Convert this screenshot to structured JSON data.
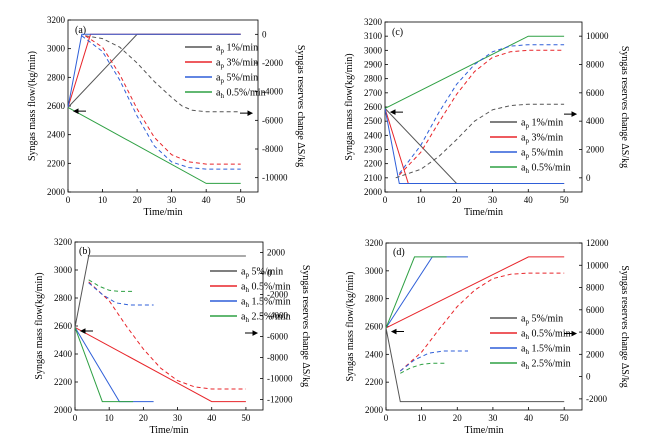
{
  "chart_data": [
    {
      "type": "line",
      "panel_label": "(a)",
      "xlabel": "Time/min",
      "ylabel": "Syngas mass flow/(kg/min)",
      "y2label": "Syngas reserves change ΔS/kg",
      "xlim": [
        0,
        55
      ],
      "xticks": [
        0,
        10,
        20,
        30,
        40,
        50
      ],
      "ylim": [
        2000,
        3200
      ],
      "yticks": [
        2000,
        2200,
        2400,
        2600,
        2800,
        3000,
        3200
      ],
      "y2lim": [
        -11000,
        1000
      ],
      "y2ticks": [
        -10000,
        -8000,
        -6000,
        -4000,
        -2000,
        0
      ],
      "legend": [
        {
          "sub": "p",
          "text": " 1%/min",
          "color": "#555555"
        },
        {
          "sub": "p",
          "text": " 3%/min",
          "color": "#e8252a"
        },
        {
          "sub": "p",
          "text": " 5%/min",
          "color": "#2f5fd8"
        },
        {
          "sub": "h",
          "text": " 0.5%/min",
          "color": "#2ea043"
        }
      ],
      "series": [
        {
          "color": "#555555",
          "axis": "left",
          "dash": false,
          "x": [
            0,
            20,
            50
          ],
          "y": [
            2590,
            3100,
            3100
          ]
        },
        {
          "color": "#e8252a",
          "axis": "left",
          "dash": false,
          "x": [
            0,
            6.5,
            50
          ],
          "y": [
            2590,
            3100,
            3100
          ]
        },
        {
          "color": "#2f5fd8",
          "axis": "left",
          "dash": false,
          "x": [
            0,
            4,
            50
          ],
          "y": [
            2590,
            3100,
            3100
          ]
        },
        {
          "color": "#2ea043",
          "axis": "left",
          "dash": false,
          "x": [
            0,
            40,
            50
          ],
          "y": [
            2590,
            2060,
            2060
          ]
        },
        {
          "color": "#555555",
          "axis": "right",
          "dash": true,
          "x": [
            5,
            10,
            15,
            20,
            25,
            30,
            33,
            36,
            40,
            50
          ],
          "y": [
            -100,
            -300,
            -900,
            -2000,
            -3300,
            -4400,
            -5000,
            -5300,
            -5400,
            -5400
          ]
        },
        {
          "color": "#e8252a",
          "axis": "right",
          "dash": true,
          "x": [
            5,
            10,
            15,
            20,
            25,
            30,
            35,
            40,
            50
          ],
          "y": [
            -100,
            -900,
            -2800,
            -5200,
            -7200,
            -8400,
            -8900,
            -9050,
            -9050
          ]
        },
        {
          "color": "#2f5fd8",
          "axis": "right",
          "dash": true,
          "x": [
            4,
            10,
            15,
            20,
            25,
            30,
            35,
            40,
            50
          ],
          "y": [
            -100,
            -1200,
            -3200,
            -5700,
            -7800,
            -8900,
            -9300,
            -9400,
            -9400
          ]
        }
      ]
    },
    {
      "type": "line",
      "panel_label": "(c)",
      "xlabel": "Time/min",
      "ylabel": "Syngas mass flow(kg/min)",
      "y2label": "Syngas reserves change ΔS/kg",
      "xlim": [
        0,
        55
      ],
      "xticks": [
        0,
        10,
        20,
        30,
        40,
        50
      ],
      "ylim": [
        2000,
        3200
      ],
      "yticks": [
        2000,
        2100,
        2200,
        2300,
        2400,
        2500,
        2600,
        2700,
        2800,
        2900,
        3000,
        3100,
        3200
      ],
      "y2lim": [
        -1000,
        11000
      ],
      "y2ticks": [
        0,
        2000,
        4000,
        6000,
        8000,
        10000
      ],
      "legend": [
        {
          "sub": "p",
          "text": " 1%/min",
          "color": "#555555"
        },
        {
          "sub": "p",
          "text": " 3%/min",
          "color": "#e8252a"
        },
        {
          "sub": "p",
          "text": " 5%/min",
          "color": "#2f5fd8"
        },
        {
          "sub": "h",
          "text": " 0.5%/min",
          "color": "#2ea043"
        }
      ],
      "series": [
        {
          "color": "#555555",
          "axis": "left",
          "dash": false,
          "x": [
            0,
            20,
            50
          ],
          "y": [
            2590,
            2060,
            2060
          ]
        },
        {
          "color": "#e8252a",
          "axis": "left",
          "dash": false,
          "x": [
            0,
            6.5,
            50
          ],
          "y": [
            2590,
            2060,
            2060
          ]
        },
        {
          "color": "#2f5fd8",
          "axis": "left",
          "dash": false,
          "x": [
            0,
            4,
            50
          ],
          "y": [
            2590,
            2060,
            2060
          ]
        },
        {
          "color": "#2ea043",
          "axis": "left",
          "dash": false,
          "x": [
            0,
            40,
            50
          ],
          "y": [
            2590,
            3100,
            3100
          ]
        },
        {
          "color": "#555555",
          "axis": "right",
          "dash": true,
          "x": [
            3,
            10,
            15,
            20,
            25,
            30,
            35,
            40,
            50
          ],
          "y": [
            0,
            600,
            1500,
            2700,
            4000,
            4800,
            5100,
            5200,
            5200
          ]
        },
        {
          "color": "#e8252a",
          "axis": "right",
          "dash": true,
          "x": [
            4,
            10,
            15,
            20,
            25,
            30,
            35,
            40,
            50
          ],
          "y": [
            200,
            1800,
            3900,
            5900,
            7500,
            8500,
            8900,
            9000,
            9000
          ]
        },
        {
          "color": "#2f5fd8",
          "axis": "right",
          "dash": true,
          "x": [
            4,
            10,
            15,
            20,
            25,
            30,
            35,
            40,
            50
          ],
          "y": [
            300,
            2300,
            4600,
            6600,
            8000,
            8900,
            9300,
            9400,
            9400
          ]
        }
      ]
    },
    {
      "type": "line",
      "panel_label": "(b)",
      "xlabel": "Time/min",
      "ylabel": "Syngas mass flow(kg/min)",
      "y2label": "Syngas reserves change ΔS/kg",
      "xlim": [
        0,
        55
      ],
      "xticks": [
        0,
        10,
        20,
        30,
        40,
        50
      ],
      "ylim": [
        2000,
        3200
      ],
      "yticks": [
        2000,
        2200,
        2400,
        2600,
        2800,
        3000,
        3200
      ],
      "y2lim": [
        -13000,
        3000
      ],
      "y2ticks": [
        -12000,
        -10000,
        -8000,
        -6000,
        -4000,
        -2000,
        0,
        2000
      ],
      "legend": [
        {
          "sub": "p",
          "text": " 5%/min",
          "color": "#555555"
        },
        {
          "sub": "h",
          "text": " 0.5%/min",
          "color": "#e8252a"
        },
        {
          "sub": "h",
          "text": " 1.5%/min",
          "color": "#2f5fd8"
        },
        {
          "sub": "h",
          "text": " 2.5%/min",
          "color": "#2ea043"
        }
      ],
      "series": [
        {
          "color": "#555555",
          "axis": "left",
          "dash": false,
          "x": [
            0,
            4,
            50
          ],
          "y": [
            2590,
            3100,
            3100
          ]
        },
        {
          "color": "#e8252a",
          "axis": "left",
          "dash": false,
          "x": [
            0,
            40,
            50
          ],
          "y": [
            2590,
            2060,
            2060
          ]
        },
        {
          "color": "#2f5fd8",
          "axis": "left",
          "dash": false,
          "x": [
            0,
            13,
            23
          ],
          "y": [
            2590,
            2060,
            2060
          ]
        },
        {
          "color": "#2ea043",
          "axis": "left",
          "dash": false,
          "x": [
            0,
            8,
            17
          ],
          "y": [
            2590,
            2060,
            2060
          ]
        },
        {
          "color": "#e8252a",
          "axis": "right",
          "dash": true,
          "x": [
            4,
            10,
            15,
            20,
            25,
            30,
            35,
            40,
            50
          ],
          "y": [
            -800,
            -2600,
            -5000,
            -7200,
            -9000,
            -10200,
            -10800,
            -11000,
            -11000
          ]
        },
        {
          "color": "#2f5fd8",
          "axis": "right",
          "dash": true,
          "x": [
            4,
            8,
            12,
            16,
            23
          ],
          "y": [
            -900,
            -2000,
            -2800,
            -3000,
            -3000
          ]
        },
        {
          "color": "#2ea043",
          "axis": "right",
          "dash": true,
          "x": [
            4,
            7,
            10,
            13,
            17
          ],
          "y": [
            -600,
            -1200,
            -1600,
            -1700,
            -1700
          ]
        }
      ]
    },
    {
      "type": "line",
      "panel_label": "(d)",
      "xlabel": "Time/min",
      "ylabel": "Syngas mass flow/(kg/min)",
      "y2label": "Syngas reserves change ΔS/kg",
      "xlim": [
        0,
        55
      ],
      "xticks": [
        0,
        10,
        20,
        30,
        40,
        50
      ],
      "ylim": [
        2000,
        3200
      ],
      "yticks": [
        2000,
        2200,
        2400,
        2600,
        2800,
        3000,
        3200
      ],
      "y2lim": [
        -3000,
        12000
      ],
      "y2ticks": [
        -2000,
        0,
        2000,
        4000,
        6000,
        8000,
        10000,
        12000
      ],
      "legend": [
        {
          "sub": "p",
          "text": " 5%/min",
          "color": "#555555"
        },
        {
          "sub": "h",
          "text": " 0.5%/min",
          "color": "#e8252a"
        },
        {
          "sub": "h",
          "text": " 1.5%/min",
          "color": "#2f5fd8"
        },
        {
          "sub": "h",
          "text": " 2.5%/min",
          "color": "#2ea043"
        }
      ],
      "series": [
        {
          "color": "#555555",
          "axis": "left",
          "dash": false,
          "x": [
            0,
            4,
            50
          ],
          "y": [
            2590,
            2060,
            2060
          ]
        },
        {
          "color": "#e8252a",
          "axis": "left",
          "dash": false,
          "x": [
            0,
            40,
            50
          ],
          "y": [
            2590,
            3100,
            3100
          ]
        },
        {
          "color": "#2f5fd8",
          "axis": "left",
          "dash": false,
          "x": [
            0,
            13,
            23
          ],
          "y": [
            2590,
            3100,
            3100
          ]
        },
        {
          "color": "#2ea043",
          "axis": "left",
          "dash": false,
          "x": [
            0,
            8,
            17
          ],
          "y": [
            2590,
            3100,
            3100
          ]
        },
        {
          "color": "#e8252a",
          "axis": "right",
          "dash": true,
          "x": [
            4,
            10,
            15,
            20,
            25,
            30,
            35,
            40,
            50
          ],
          "y": [
            500,
            2200,
            4300,
            6300,
            7800,
            8800,
            9200,
            9300,
            9300
          ]
        },
        {
          "color": "#2f5fd8",
          "axis": "right",
          "dash": true,
          "x": [
            4,
            8,
            12,
            16,
            23
          ],
          "y": [
            500,
            1500,
            2100,
            2300,
            2300
          ]
        },
        {
          "color": "#2ea043",
          "axis": "right",
          "dash": true,
          "x": [
            4,
            7,
            10,
            13,
            17
          ],
          "y": [
            300,
            800,
            1100,
            1200,
            1200
          ]
        }
      ]
    }
  ]
}
